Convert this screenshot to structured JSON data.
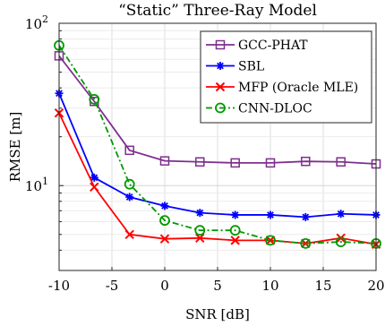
{
  "chart_data": {
    "type": "line",
    "title": "“Static” Three-Ray Model",
    "xlabel": "SNR [dB]",
    "ylabel": "RMSE [m]",
    "yscale": "log",
    "xlim": [
      -10,
      20
    ],
    "ylim": [
      3,
      100
    ],
    "grid": true,
    "legend_position": "top-right",
    "x_ticks": [
      "-10",
      "-5",
      "0",
      "5",
      "10",
      "15",
      "20"
    ],
    "x_tick_values": [
      -10,
      -5,
      0,
      5,
      10,
      15,
      20
    ],
    "y_ticks": [
      {
        "value": 10,
        "mantissa": "10",
        "exp": "1"
      },
      {
        "value": 100,
        "mantissa": "10",
        "exp": "2"
      }
    ],
    "x": [
      -10,
      -6.67,
      -3.33,
      0,
      3.33,
      6.67,
      10,
      13.33,
      16.67,
      20
    ],
    "series": [
      {
        "name": "GCC-PHAT",
        "color": "#7e2f8e",
        "marker": "square",
        "dash": "solid",
        "values": [
          63,
          33,
          16.5,
          14.2,
          14.0,
          13.8,
          13.8,
          14.1,
          14.0,
          13.6
        ]
      },
      {
        "name": "SBL",
        "color": "#0000ff",
        "marker": "asterisk",
        "dash": "solid",
        "values": [
          37,
          11.2,
          8.5,
          7.5,
          6.8,
          6.6,
          6.6,
          6.4,
          6.7,
          6.6
        ]
      },
      {
        "name": "MFP (Oracle MLE)",
        "color": "#ff0000",
        "marker": "x",
        "dash": "solid",
        "values": [
          28,
          9.8,
          5.0,
          4.7,
          4.75,
          4.6,
          4.6,
          4.4,
          4.75,
          4.35
        ]
      },
      {
        "name": "CNN-DLOC",
        "color": "#009900",
        "marker": "circle",
        "dash": "dashdot",
        "values": [
          73,
          34,
          10.2,
          6.1,
          5.3,
          5.3,
          4.6,
          4.4,
          4.5,
          4.4
        ]
      }
    ]
  }
}
